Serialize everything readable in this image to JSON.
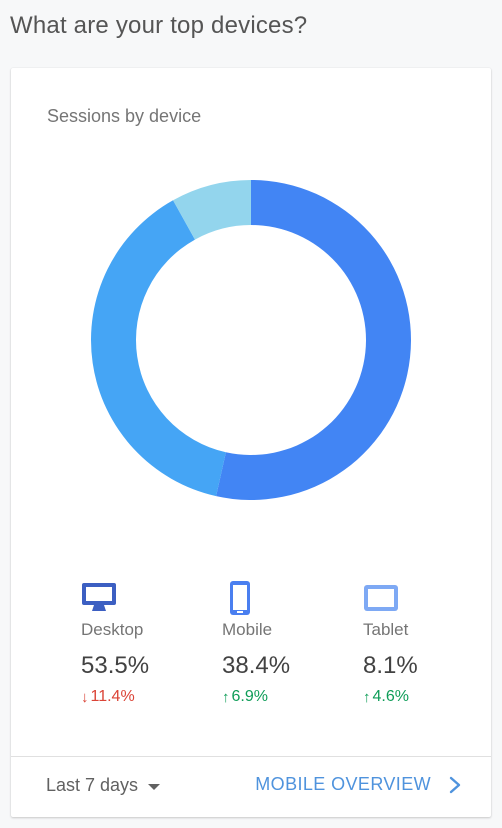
{
  "page": {
    "heading": "What are your top devices?"
  },
  "card": {
    "title": "Sessions by device",
    "devices": [
      {
        "label": "Desktop",
        "value": "53.5%",
        "change": "11.4%",
        "direction": "down",
        "icon": "desktop-icon",
        "color": "#4285f4"
      },
      {
        "label": "Mobile",
        "value": "38.4%",
        "change": "6.9%",
        "direction": "up",
        "icon": "mobile-icon",
        "color": "#45a5f5"
      },
      {
        "label": "Tablet",
        "value": "8.1%",
        "change": "4.6%",
        "direction": "up",
        "icon": "tablet-icon",
        "color": "#93d5ed"
      }
    ],
    "footer": {
      "range": "Last 7 days",
      "link": "MOBILE OVERVIEW"
    }
  },
  "colors": {
    "up": "#0f9d58",
    "down": "#db4437",
    "link": "#4f93dd"
  },
  "chart_data": {
    "type": "pie",
    "variant": "donut",
    "title": "Sessions by device",
    "categories": [
      "Desktop",
      "Mobile",
      "Tablet"
    ],
    "values": [
      53.5,
      38.4,
      8.1
    ],
    "colors": [
      "#4285f4",
      "#45a5f5",
      "#93d5ed"
    ]
  }
}
